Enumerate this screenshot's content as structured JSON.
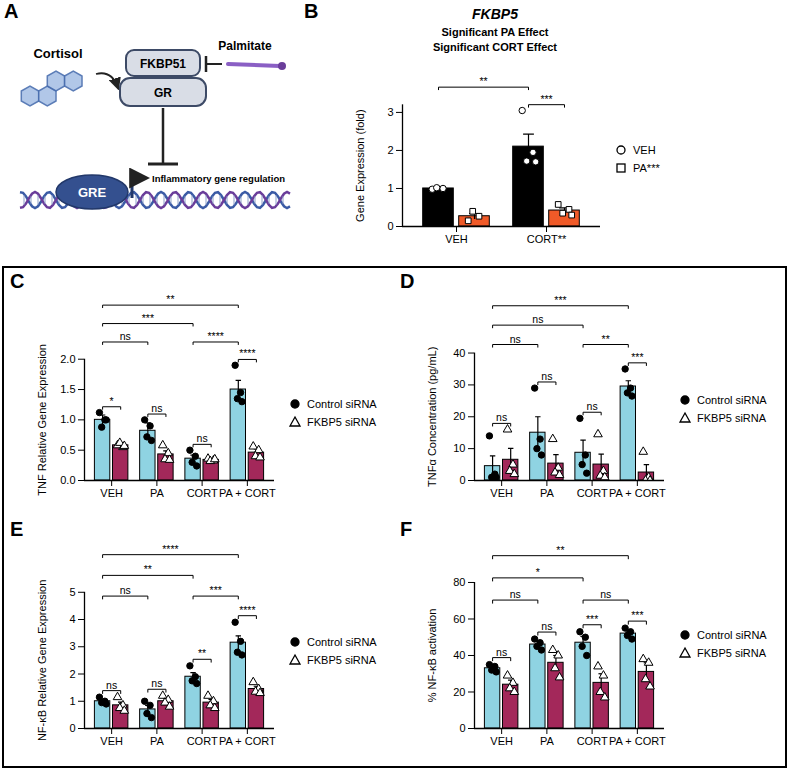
{
  "diagram": {
    "panel": "A",
    "nodes": [
      {
        "label": "Cortisol"
      },
      {
        "label": "FKBP51"
      },
      {
        "label": "GR"
      },
      {
        "label": "Palmitate"
      },
      {
        "label": "GRE"
      },
      {
        "label": "Inflammatory gene regulation"
      }
    ]
  },
  "chart_data": [
    {
      "type": "bar",
      "panel": "B",
      "title": "FKBP5",
      "subtitle": [
        "Significant PA Effect",
        "Significant CORT Effect"
      ],
      "y_label": "Gene Expression (fold)",
      "categories": [
        "VEH",
        "CORT**"
      ],
      "ylim": [
        0,
        3.2
      ],
      "yticks": [
        0,
        1,
        2,
        3
      ],
      "grid": false,
      "legend": "right",
      "series": [
        {
          "name": "VEH",
          "color": "#000000",
          "marker": "open_circle",
          "values": [
            1.0,
            2.1
          ],
          "errors": [
            0.02,
            0.33
          ],
          "points": [
            [
              0.98,
              1.0,
              1.02
            ],
            [
              3.05,
              1.95,
              1.72,
              1.7
            ]
          ]
        },
        {
          "name": "PA***",
          "color": "#f05a28",
          "marker": "open_square",
          "values": [
            0.27,
            0.42
          ],
          "errors": [
            0.07,
            0.07
          ],
          "points": [
            [
              0.15,
              0.27,
              0.4
            ],
            [
              0.58,
              0.45,
              0.35,
              0.3
            ]
          ]
        }
      ],
      "comparisons": [
        {
          "a": [
            "VEH",
            "VEH"
          ],
          "b": [
            "CORT**",
            "VEH"
          ],
          "label": "**"
        },
        {
          "a": [
            "CORT**",
            "VEH"
          ],
          "b": [
            "CORT**",
            "PA***"
          ],
          "label": "***"
        }
      ]
    },
    {
      "type": "bar",
      "panel": "C",
      "y_label": "TNF Relative Gene Expression",
      "categories": [
        "VEH",
        "PA",
        "CORT",
        "PA + CORT"
      ],
      "ylim": [
        0,
        2
      ],
      "yticks": [
        {
          "value": 0,
          "label": "0.0"
        },
        {
          "value": 0.5,
          "label": "0.5"
        },
        {
          "value": 1,
          "label": "1.0"
        },
        {
          "value": 1.5,
          "label": "1.5"
        },
        {
          "value": 2,
          "label": "2.0"
        }
      ],
      "grid": false,
      "legend": "right",
      "series": [
        {
          "name": "Control siRNA",
          "color": "#8fd3e2",
          "marker": "circle",
          "values": [
            1.0,
            0.82,
            0.36,
            1.5
          ],
          "errors": [
            0.08,
            0.13,
            0.06,
            0.15
          ],
          "points": [
            [
              1.12,
              1.0,
              0.88,
              1.0
            ],
            [
              1.0,
              0.9,
              0.72,
              0.66
            ],
            [
              0.5,
              0.4,
              0.3,
              0.24
            ],
            [
              1.9,
              1.45,
              1.35,
              1.3
            ]
          ]
        },
        {
          "name": "FKBP5 siRNA",
          "color": "#a3285a",
          "marker": "open_triangle",
          "values": [
            0.58,
            0.43,
            0.34,
            0.46
          ],
          "errors": [
            0.04,
            0.06,
            0.02,
            0.06
          ],
          "points": [
            [
              0.58,
              0.55,
              0.62,
              0.57
            ],
            [
              0.58,
              0.45,
              0.35,
              0.34
            ],
            [
              0.36,
              0.33,
              0.32,
              0.35
            ],
            [
              0.56,
              0.5,
              0.4,
              0.38
            ]
          ]
        }
      ],
      "comparisons": [
        {
          "a": [
            "VEH",
            "Control siRNA"
          ],
          "b": [
            "VEH",
            "FKBP5 siRNA"
          ],
          "label": "*"
        },
        {
          "a": [
            "PA",
            "Control siRNA"
          ],
          "b": [
            "PA",
            "FKBP5 siRNA"
          ],
          "label": "ns"
        },
        {
          "a": [
            "CORT",
            "Control siRNA"
          ],
          "b": [
            "CORT",
            "FKBP5 siRNA"
          ],
          "label": "ns"
        },
        {
          "a": [
            "PA + CORT",
            "Control siRNA"
          ],
          "b": [
            "PA + CORT",
            "FKBP5 siRNA"
          ],
          "label": "****"
        },
        {
          "a": [
            "VEH",
            "Control siRNA"
          ],
          "b": [
            "PA",
            "Control siRNA"
          ],
          "label": "ns"
        },
        {
          "a": [
            "VEH",
            "Control siRNA"
          ],
          "b": [
            "CORT",
            "Control siRNA"
          ],
          "label": "***"
        },
        {
          "a": [
            "VEH",
            "Control siRNA"
          ],
          "b": [
            "PA + CORT",
            "Control siRNA"
          ],
          "label": "**"
        },
        {
          "a": [
            "CORT",
            "Control siRNA"
          ],
          "b": [
            "PA + CORT",
            "Control siRNA"
          ],
          "label": "****"
        }
      ]
    },
    {
      "type": "bar",
      "panel": "D",
      "y_label": "TNFα Concentration (pg/mL)",
      "categories": [
        "VEH",
        "PA",
        "CORT",
        "PA + CORT"
      ],
      "ylim": [
        0,
        40
      ],
      "yticks": [
        0,
        10,
        20,
        30,
        40
      ],
      "grid": false,
      "legend": "right",
      "series": [
        {
          "name": "Control siRNA",
          "color": "#8fd3e2",
          "marker": "circle",
          "values": [
            4.5,
            15,
            8.7,
            29.5
          ],
          "errors": [
            3.2,
            5,
            4,
            1.8
          ],
          "points": [
            [
              14,
              2,
              1,
              1
            ],
            [
              29,
              13,
              10,
              8
            ],
            [
              19.5,
              8,
              5,
              2.3
            ],
            [
              35,
              29,
              27.5,
              26.5
            ]
          ]
        },
        {
          "name": "FKBP5 siRNA",
          "color": "#a3285a",
          "marker": "open_triangle",
          "values": [
            6.5,
            5.3,
            5,
            2.5
          ],
          "errors": [
            3.6,
            2.8,
            3.3,
            2.5
          ],
          "points": [
            [
              16,
              5,
              3,
              2
            ],
            [
              13,
              4,
              2.5,
              1.7
            ],
            [
              14.5,
              3,
              1.5,
              1
            ],
            [
              9,
              1,
              0,
              0
            ]
          ]
        }
      ],
      "comparisons": [
        {
          "a": [
            "VEH",
            "Control siRNA"
          ],
          "b": [
            "VEH",
            "FKBP5 siRNA"
          ],
          "label": "ns"
        },
        {
          "a": [
            "PA",
            "Control siRNA"
          ],
          "b": [
            "PA",
            "FKBP5 siRNA"
          ],
          "label": "ns"
        },
        {
          "a": [
            "CORT",
            "Control siRNA"
          ],
          "b": [
            "CORT",
            "FKBP5 siRNA"
          ],
          "label": "ns"
        },
        {
          "a": [
            "PA + CORT",
            "Control siRNA"
          ],
          "b": [
            "PA + CORT",
            "FKBP5 siRNA"
          ],
          "label": "***"
        },
        {
          "a": [
            "VEH",
            "Control siRNA"
          ],
          "b": [
            "PA",
            "Control siRNA"
          ],
          "label": "ns"
        },
        {
          "a": [
            "VEH",
            "Control siRNA"
          ],
          "b": [
            "CORT",
            "Control siRNA"
          ],
          "label": "ns"
        },
        {
          "a": [
            "VEH",
            "Control siRNA"
          ],
          "b": [
            "PA + CORT",
            "Control siRNA"
          ],
          "label": "***"
        },
        {
          "a": [
            "CORT",
            "Control siRNA"
          ],
          "b": [
            "PA + CORT",
            "Control siRNA"
          ],
          "label": "**"
        }
      ]
    },
    {
      "type": "bar",
      "panel": "E",
      "y_label": "NF-κB Relative Gene Expression",
      "categories": [
        "VEH",
        "PA",
        "CORT",
        "PA + CORT"
      ],
      "ylim": [
        0,
        5
      ],
      "yticks": [
        0,
        1,
        2,
        3,
        4,
        5
      ],
      "grid": false,
      "legend": "right",
      "series": [
        {
          "name": "Control siRNA",
          "color": "#8fd3e2",
          "marker": "circle",
          "values": [
            1.0,
            0.7,
            1.9,
            3.15
          ],
          "errors": [
            0.06,
            0.15,
            0.15,
            0.25
          ],
          "points": [
            [
              1.15,
              1.0,
              0.95,
              0.9
            ],
            [
              1.0,
              0.85,
              0.55,
              0.4
            ],
            [
              2.3,
              1.9,
              1.75,
              1.65
            ],
            [
              3.9,
              3.2,
              2.8,
              2.7
            ]
          ]
        },
        {
          "name": "FKBP5 siRNA",
          "color": "#a3285a",
          "marker": "open_triangle",
          "values": [
            0.85,
            1.0,
            0.95,
            1.45
          ],
          "errors": [
            0.12,
            0.1,
            0.12,
            0.1
          ],
          "points": [
            [
              1.15,
              0.85,
              0.75,
              0.65
            ],
            [
              1.2,
              1.05,
              0.95,
              0.8
            ],
            [
              1.2,
              1.0,
              0.85,
              0.75
            ],
            [
              1.7,
              1.45,
              1.35,
              1.3
            ]
          ]
        }
      ],
      "comparisons": [
        {
          "a": [
            "VEH",
            "Control siRNA"
          ],
          "b": [
            "VEH",
            "FKBP5 siRNA"
          ],
          "label": "ns"
        },
        {
          "a": [
            "PA",
            "Control siRNA"
          ],
          "b": [
            "PA",
            "FKBP5 siRNA"
          ],
          "label": "ns"
        },
        {
          "a": [
            "CORT",
            "Control siRNA"
          ],
          "b": [
            "CORT",
            "FKBP5 siRNA"
          ],
          "label": "**"
        },
        {
          "a": [
            "PA + CORT",
            "Control siRNA"
          ],
          "b": [
            "PA + CORT",
            "FKBP5 siRNA"
          ],
          "label": "****"
        },
        {
          "a": [
            "VEH",
            "Control siRNA"
          ],
          "b": [
            "PA",
            "Control siRNA"
          ],
          "label": "ns"
        },
        {
          "a": [
            "VEH",
            "Control siRNA"
          ],
          "b": [
            "CORT",
            "Control siRNA"
          ],
          "label": "**"
        },
        {
          "a": [
            "VEH",
            "Control siRNA"
          ],
          "b": [
            "PA + CORT",
            "Control siRNA"
          ],
          "label": "****"
        },
        {
          "a": [
            "CORT",
            "Control siRNA"
          ],
          "b": [
            "PA + CORT",
            "Control siRNA"
          ],
          "label": "***"
        }
      ]
    },
    {
      "type": "bar",
      "panel": "F",
      "y_label": "% NF-κB activation",
      "categories": [
        "VEH",
        "PA",
        "CORT",
        "PA + CORT"
      ],
      "ylim": [
        0,
        80
      ],
      "yticks": [
        0,
        20,
        40,
        60,
        80
      ],
      "grid": false,
      "legend": "right",
      "series": [
        {
          "name": "Control siRNA",
          "color": "#8fd3e2",
          "marker": "circle",
          "values": [
            33,
            46,
            47,
            52
          ],
          "errors": [
            1.5,
            1.8,
            3.5,
            1.3
          ],
          "points": [
            [
              35,
              34,
              32,
              31
            ],
            [
              49,
              47,
              45,
              43
            ],
            [
              53,
              50,
              45,
              40
            ],
            [
              55,
              53,
              51,
              49
            ]
          ]
        },
        {
          "name": "FKBP5 siRNA",
          "color": "#a3285a",
          "marker": "open_triangle",
          "values": [
            24,
            36,
            25,
            31
          ],
          "errors": [
            2.5,
            4,
            5,
            5
          ],
          "points": [
            [
              29,
              25,
              22,
              20
            ],
            [
              43,
              40,
              33,
              28
            ],
            [
              34,
              29,
              20,
              17
            ],
            [
              38,
              36,
              27,
              23
            ]
          ]
        }
      ],
      "comparisons": [
        {
          "a": [
            "VEH",
            "Control siRNA"
          ],
          "b": [
            "VEH",
            "FKBP5 siRNA"
          ],
          "label": "ns"
        },
        {
          "a": [
            "PA",
            "Control siRNA"
          ],
          "b": [
            "PA",
            "FKBP5 siRNA"
          ],
          "label": "ns"
        },
        {
          "a": [
            "CORT",
            "Control siRNA"
          ],
          "b": [
            "CORT",
            "FKBP5 siRNA"
          ],
          "label": "***"
        },
        {
          "a": [
            "PA + CORT",
            "Control siRNA"
          ],
          "b": [
            "PA + CORT",
            "FKBP5 siRNA"
          ],
          "label": "***"
        },
        {
          "a": [
            "VEH",
            "Control siRNA"
          ],
          "b": [
            "PA",
            "Control siRNA"
          ],
          "label": "ns"
        },
        {
          "a": [
            "VEH",
            "Control siRNA"
          ],
          "b": [
            "CORT",
            "Control siRNA"
          ],
          "label": "*"
        },
        {
          "a": [
            "VEH",
            "Control siRNA"
          ],
          "b": [
            "PA + CORT",
            "Control siRNA"
          ],
          "label": "**"
        },
        {
          "a": [
            "CORT",
            "Control siRNA"
          ],
          "b": [
            "PA + CORT",
            "Control siRNA"
          ],
          "label": "ns"
        }
      ]
    }
  ]
}
